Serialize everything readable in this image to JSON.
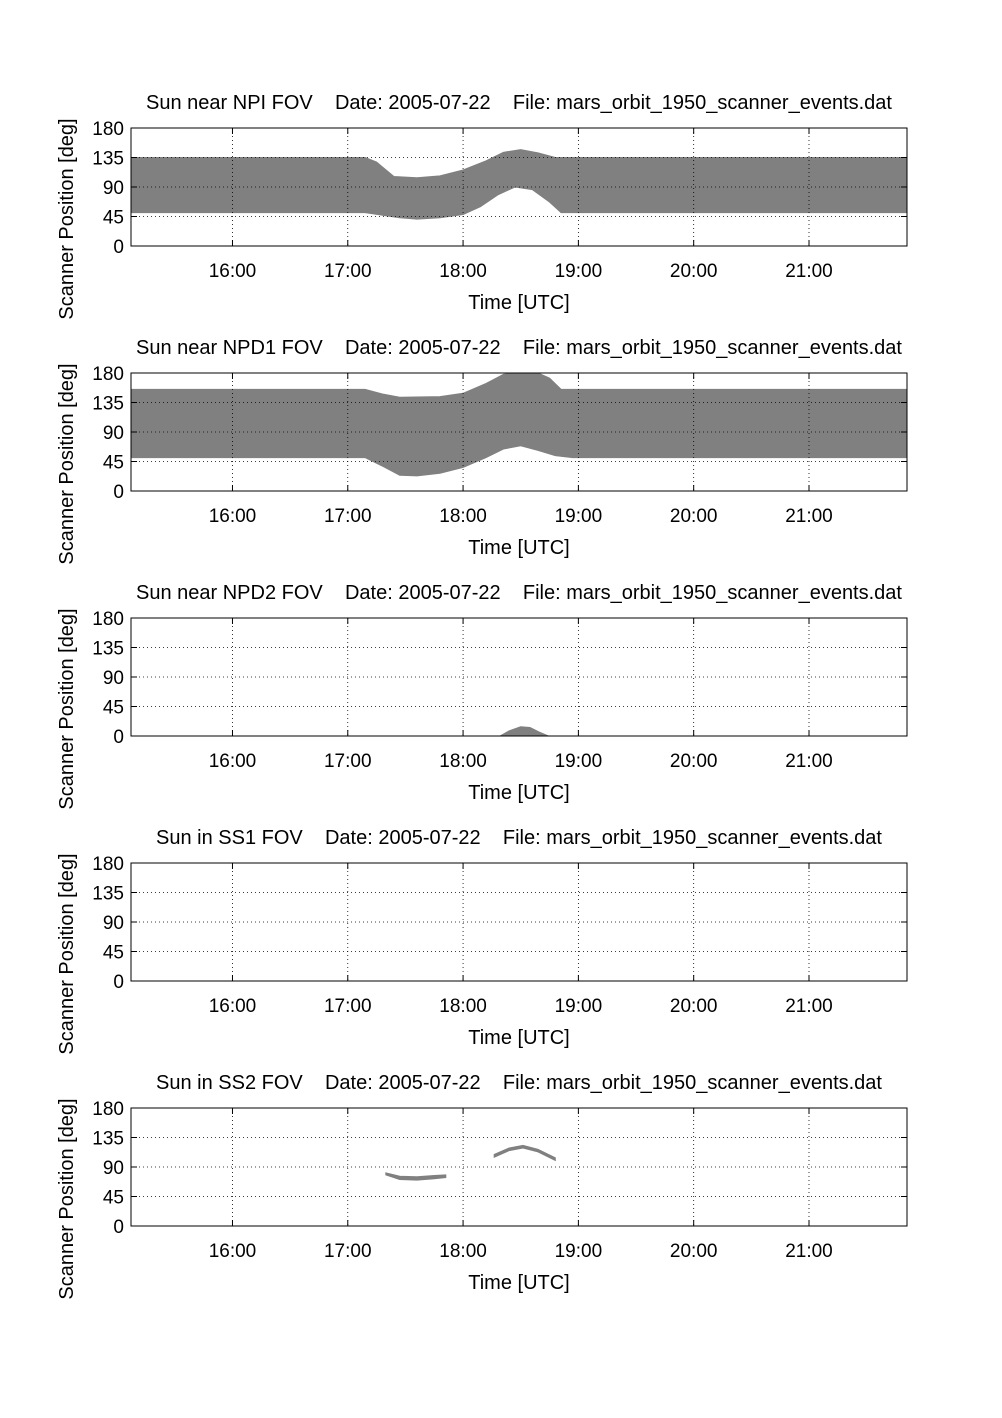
{
  "colors": {
    "fill": "#808080",
    "axis": "#000000",
    "grid": "#000000",
    "background": "#ffffff"
  },
  "chart_data": [
    {
      "type": "area",
      "title": "Sun near NPI FOV    Date: 2005-07-22    File: mars_orbit_1950_scanner_events.dat",
      "xlabel": "Time [UTC]",
      "ylabel": "Scanner Position [deg]",
      "xlim": [
        15.12,
        21.85
      ],
      "ylim": [
        0,
        180
      ],
      "xticks": [
        16,
        17,
        18,
        19,
        20,
        21
      ],
      "xtick_labels": [
        "16:00",
        "17:00",
        "18:00",
        "19:00",
        "20:00",
        "21:00"
      ],
      "yticks": [
        0,
        45,
        90,
        135,
        180
      ],
      "grid": true,
      "bands": [
        {
          "upper": [
            [
              15.12,
              135
            ],
            [
              17.15,
              135
            ],
            [
              17.25,
              128
            ],
            [
              17.4,
              106
            ],
            [
              17.6,
              104
            ],
            [
              17.8,
              107
            ],
            [
              18.0,
              116
            ],
            [
              18.2,
              130
            ],
            [
              18.35,
              143
            ],
            [
              18.5,
              147
            ],
            [
              18.65,
              142
            ],
            [
              18.8,
              135
            ],
            [
              21.85,
              135
            ]
          ],
          "lower": [
            [
              15.12,
              51
            ],
            [
              17.15,
              51
            ],
            [
              17.3,
              47
            ],
            [
              17.45,
              43
            ],
            [
              17.6,
              41
            ],
            [
              17.8,
              43
            ],
            [
              18.0,
              48
            ],
            [
              18.15,
              60
            ],
            [
              18.3,
              78
            ],
            [
              18.45,
              90
            ],
            [
              18.6,
              86
            ],
            [
              18.75,
              67
            ],
            [
              18.85,
              51
            ],
            [
              21.85,
              51
            ]
          ]
        }
      ]
    },
    {
      "type": "area",
      "title": "Sun near NPD1 FOV    Date: 2005-07-22    File: mars_orbit_1950_scanner_events.dat",
      "xlabel": "Time [UTC]",
      "ylabel": "Scanner Position [deg]",
      "xlim": [
        15.12,
        21.85
      ],
      "ylim": [
        0,
        180
      ],
      "xticks": [
        16,
        17,
        18,
        19,
        20,
        21
      ],
      "xtick_labels": [
        "16:00",
        "17:00",
        "18:00",
        "19:00",
        "20:00",
        "21:00"
      ],
      "yticks": [
        0,
        45,
        90,
        135,
        180
      ],
      "grid": true,
      "bands": [
        {
          "upper": [
            [
              15.12,
              155
            ],
            [
              17.15,
              155
            ],
            [
              17.3,
              148
            ],
            [
              17.45,
              143
            ],
            [
              17.8,
              144
            ],
            [
              18.0,
              149
            ],
            [
              18.2,
              164
            ],
            [
              18.35,
              178
            ],
            [
              18.45,
              180
            ],
            [
              18.65,
              180
            ],
            [
              18.75,
              172
            ],
            [
              18.85,
              155
            ],
            [
              21.85,
              155
            ]
          ],
          "lower": [
            [
              15.12,
              51
            ],
            [
              17.15,
              51
            ],
            [
              17.3,
              38
            ],
            [
              17.45,
              24
            ],
            [
              17.6,
              23
            ],
            [
              17.8,
              27
            ],
            [
              18.0,
              36
            ],
            [
              18.2,
              51
            ],
            [
              18.35,
              64
            ],
            [
              18.5,
              69
            ],
            [
              18.65,
              62
            ],
            [
              18.8,
              54
            ],
            [
              18.95,
              51
            ],
            [
              21.85,
              51
            ]
          ]
        }
      ]
    },
    {
      "type": "area",
      "title": "Sun near NPD2 FOV    Date: 2005-07-22    File: mars_orbit_1950_scanner_events.dat",
      "xlabel": "Time [UTC]",
      "ylabel": "Scanner Position [deg]",
      "xlim": [
        15.12,
        21.85
      ],
      "ylim": [
        0,
        180
      ],
      "xticks": [
        16,
        17,
        18,
        19,
        20,
        21
      ],
      "xtick_labels": [
        "16:00",
        "17:00",
        "18:00",
        "19:00",
        "20:00",
        "21:00"
      ],
      "yticks": [
        0,
        45,
        90,
        135,
        180
      ],
      "grid": true,
      "bands": [
        {
          "upper": [
            [
              18.32,
              0
            ],
            [
              18.4,
              8
            ],
            [
              18.5,
              14
            ],
            [
              18.58,
              13
            ],
            [
              18.66,
              6
            ],
            [
              18.74,
              0
            ]
          ],
          "lower": [
            [
              18.32,
              0
            ],
            [
              18.74,
              0
            ]
          ]
        }
      ]
    },
    {
      "type": "area",
      "title": "Sun in SS1 FOV    Date: 2005-07-22    File: mars_orbit_1950_scanner_events.dat",
      "xlabel": "Time [UTC]",
      "ylabel": "Scanner Position [deg]",
      "xlim": [
        15.12,
        21.85
      ],
      "ylim": [
        0,
        180
      ],
      "xticks": [
        16,
        17,
        18,
        19,
        20,
        21
      ],
      "xtick_labels": [
        "16:00",
        "17:00",
        "18:00",
        "19:00",
        "20:00",
        "21:00"
      ],
      "yticks": [
        0,
        45,
        90,
        135,
        180
      ],
      "grid": true,
      "bands": []
    },
    {
      "type": "area",
      "title": "Sun in SS2 FOV    Date: 2005-07-22    File: mars_orbit_1950_scanner_events.dat",
      "xlabel": "Time [UTC]",
      "ylabel": "Scanner Position [deg]",
      "xlim": [
        15.12,
        21.85
      ],
      "ylim": [
        0,
        180
      ],
      "xticks": [
        16,
        17,
        18,
        19,
        20,
        21
      ],
      "xtick_labels": [
        "16:00",
        "17:00",
        "18:00",
        "19:00",
        "20:00",
        "21:00"
      ],
      "yticks": [
        0,
        45,
        90,
        135,
        180
      ],
      "grid": true,
      "bands": [
        {
          "upper": [
            [
              17.33,
              81
            ],
            [
              17.45,
              76
            ],
            [
              17.6,
              75
            ],
            [
              17.75,
              77
            ],
            [
              17.85,
              78
            ]
          ],
          "lower": [
            [
              17.33,
              78
            ],
            [
              17.45,
              71
            ],
            [
              17.6,
              70
            ],
            [
              17.75,
              72
            ],
            [
              17.85,
              74
            ]
          ]
        },
        {
          "upper": [
            [
              18.27,
              109
            ],
            [
              18.4,
              119
            ],
            [
              18.52,
              123
            ],
            [
              18.65,
              117
            ],
            [
              18.8,
              104
            ]
          ],
          "lower": [
            [
              18.27,
              105
            ],
            [
              18.4,
              115
            ],
            [
              18.52,
              119
            ],
            [
              18.65,
              113
            ],
            [
              18.8,
              100
            ]
          ]
        }
      ]
    }
  ]
}
